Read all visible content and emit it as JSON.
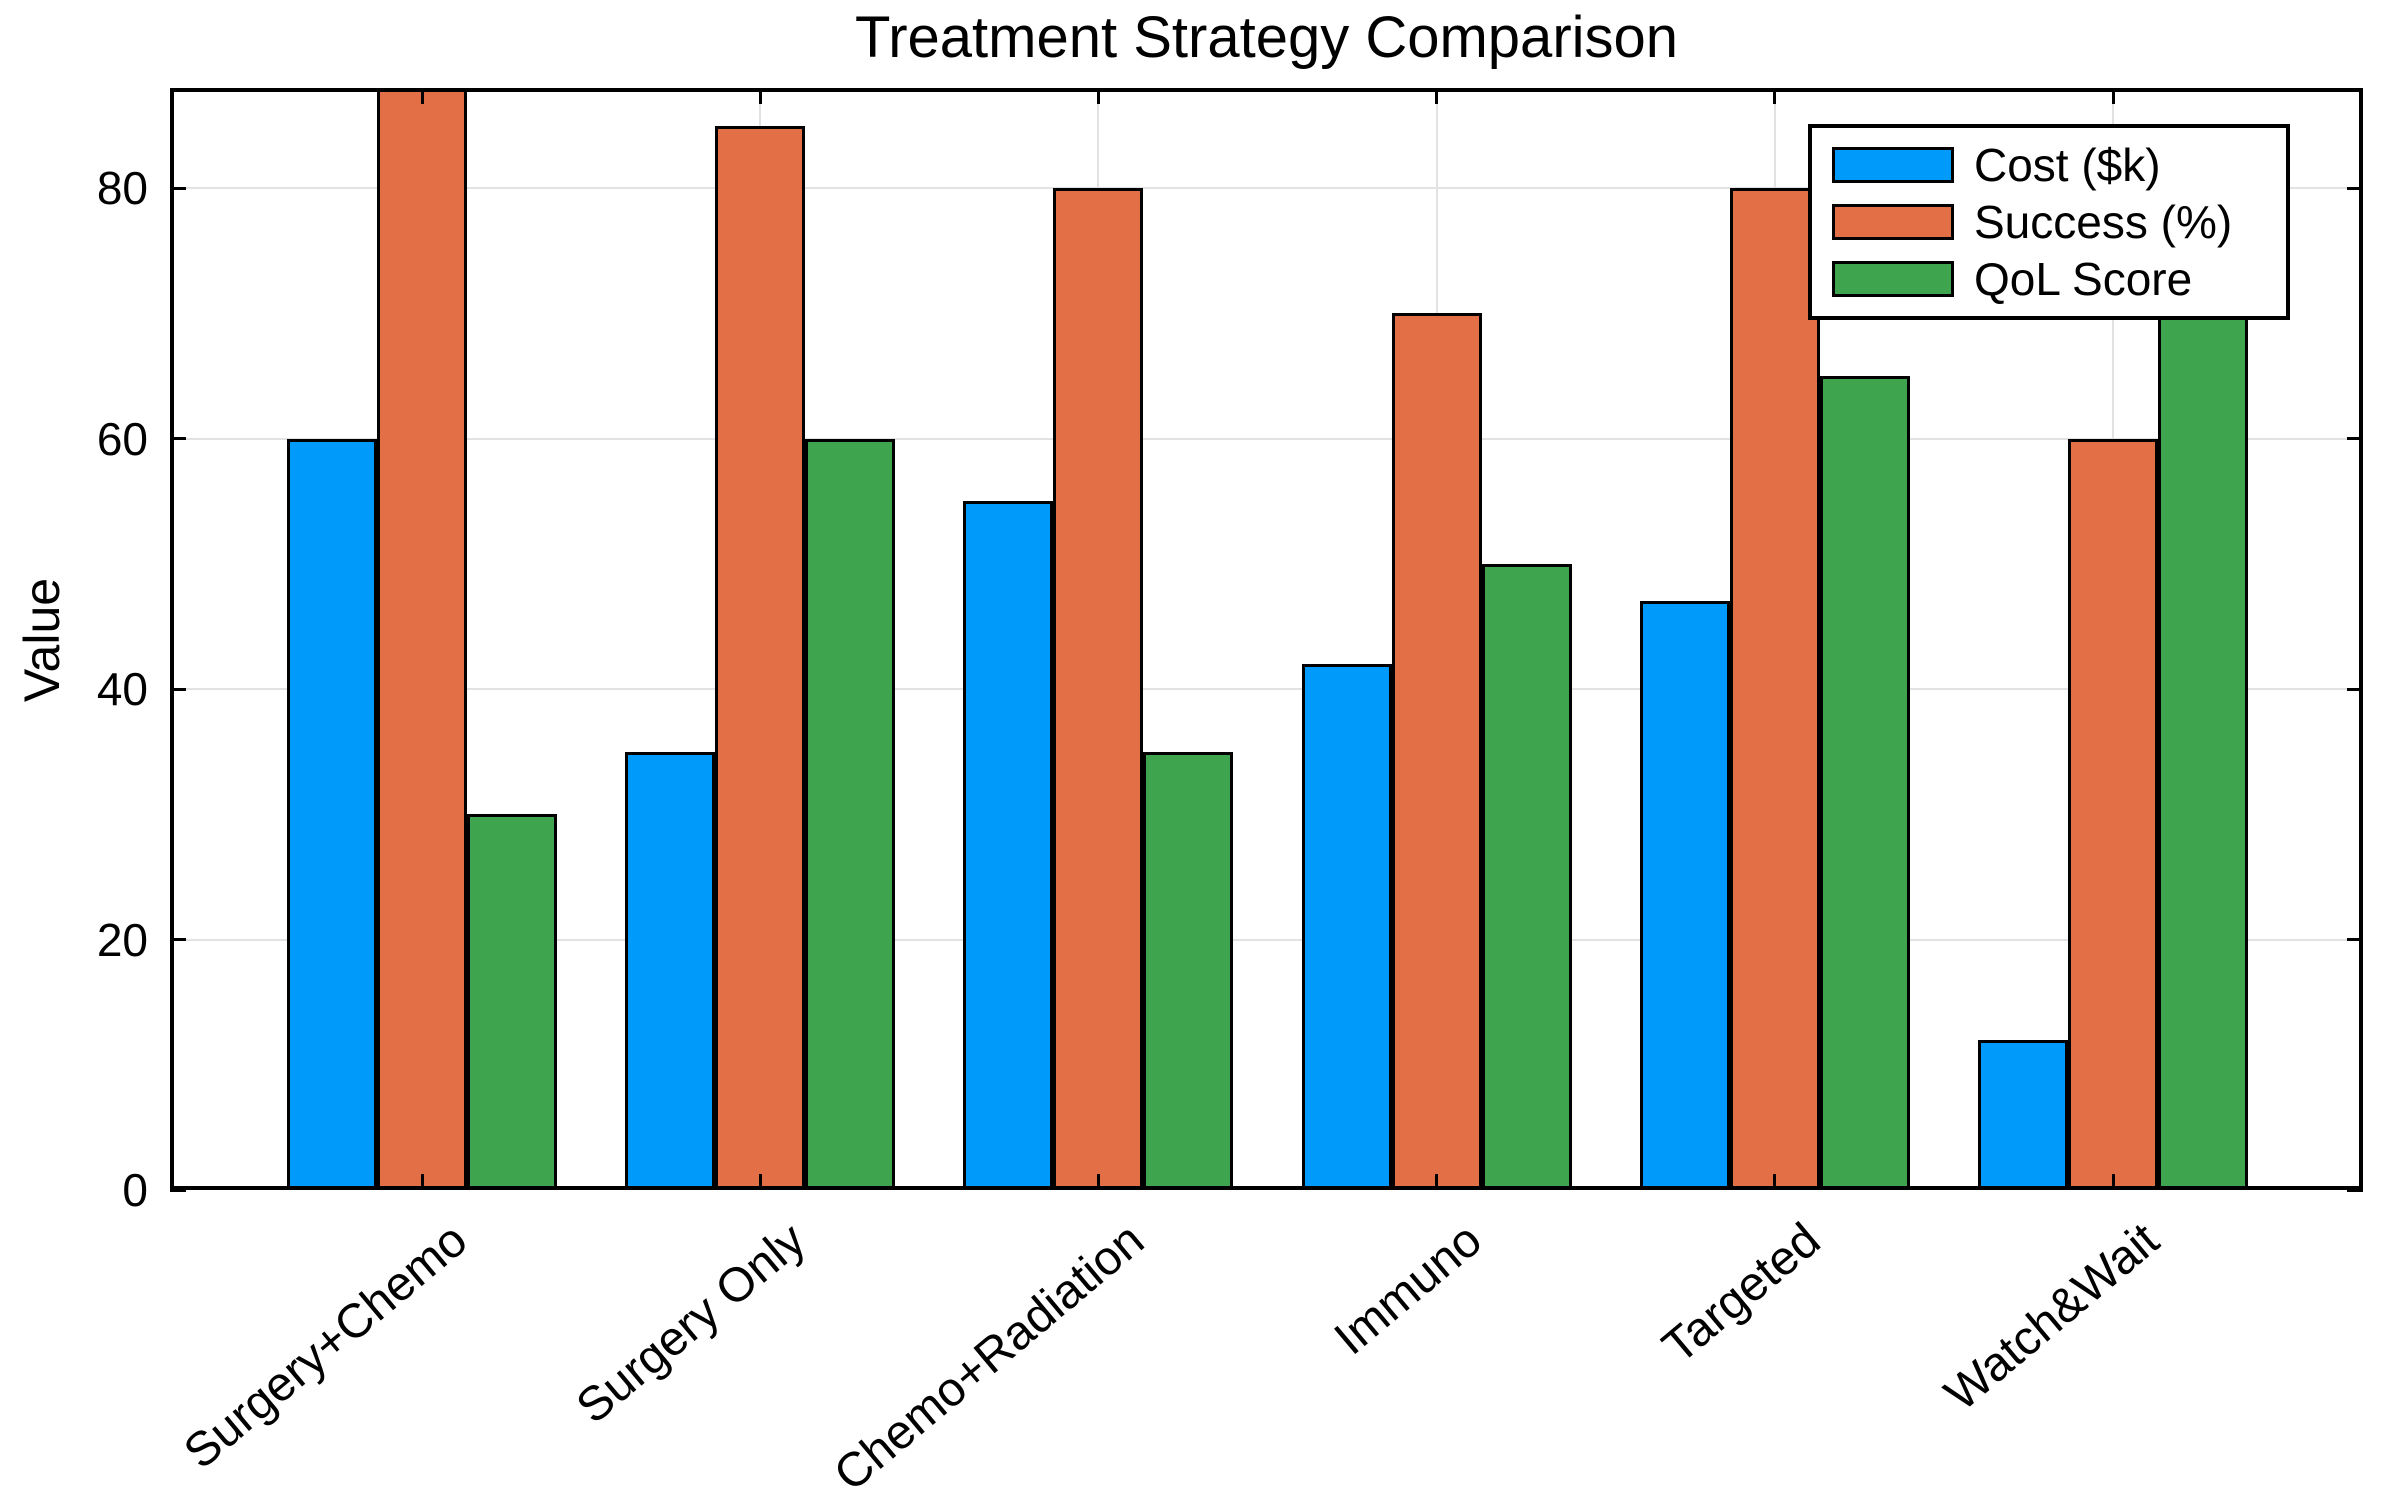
{
  "chart_data": {
    "type": "bar",
    "title": "Treatment Strategy Comparison",
    "xlabel": "",
    "ylabel": "Value",
    "categories": [
      "Surgery+Chemo",
      "Surgery Only",
      "Chemo+Radiation",
      "Immuno",
      "Targeted",
      "Watch&Wait"
    ],
    "series": [
      {
        "name": "Cost ($k)",
        "color": "#009AFA",
        "values": [
          60,
          35,
          55,
          42,
          47,
          12
        ]
      },
      {
        "name": "Success (%)",
        "color": "#E36F47",
        "values": [
          88,
          85,
          80,
          70,
          80,
          60
        ]
      },
      {
        "name": "QoL Score",
        "color": "#3EA44E",
        "values": [
          30,
          60,
          35,
          50,
          65,
          70
        ]
      }
    ],
    "ylim": [
      0,
      88
    ],
    "yticks": [
      0,
      20,
      40,
      60,
      80
    ],
    "grid": true,
    "grid_color": "#E2E2E2",
    "bar_edge_color": "#000000",
    "legend_position": "top-right",
    "x_tick_rotation_deg": 40
  }
}
